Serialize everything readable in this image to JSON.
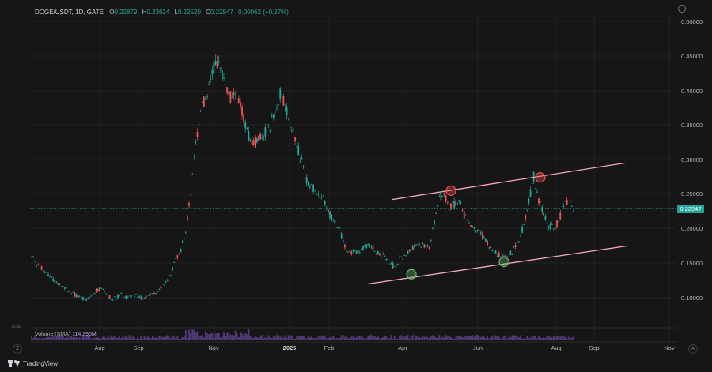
{
  "header": {
    "symbol": "DOGE/USDT, 1D, GATE",
    "open_label": "O",
    "open": "0.22879",
    "high_label": "H",
    "high": "0.23624",
    "low_label": "L",
    "low": "0.22520",
    "close_label": "C",
    "close": "0.22947",
    "change": "0.00062 (+0.27%)"
  },
  "volume": {
    "label": "Volume (SMA)",
    "value": "114.295M",
    "scale_label": "100.0M"
  },
  "last_price": "0.22947",
  "branding": {
    "name": "TradingView"
  },
  "buttons": {
    "goto_date": "Z",
    "auto_scale": "A"
  },
  "colors": {
    "up": "#26a69a",
    "down": "#ef5350",
    "channel": "#f4a9b8",
    "high_marker": "#ef5350",
    "low_marker": "#66bb6a",
    "price_line": "#26a69a",
    "volume": "#7e57c2"
  },
  "chart_data": {
    "type": "candlestick",
    "x_ticks": [
      "Aug",
      "Sep",
      "Nov",
      "2025",
      "Feb",
      "Apr",
      "Jun",
      "Aug",
      "Sep",
      "Nov"
    ],
    "y_ticks": [
      "0.50000",
      "0.45000",
      "0.40000",
      "0.35000",
      "0.30000",
      "0.25000",
      "0.20000",
      "0.15000",
      "0.10000"
    ],
    "ylim": [
      0.078,
      0.52
    ],
    "current_price": 0.22947,
    "closes": [
      0.16,
      0.15,
      0.143,
      0.135,
      0.128,
      0.122,
      0.117,
      0.112,
      0.108,
      0.103,
      0.1,
      0.097,
      0.103,
      0.11,
      0.113,
      0.106,
      0.099,
      0.1,
      0.106,
      0.1,
      0.102,
      0.103,
      0.1,
      0.101,
      0.104,
      0.108,
      0.115,
      0.123,
      0.135,
      0.155,
      0.168,
      0.195,
      0.255,
      0.32,
      0.37,
      0.39,
      0.42,
      0.44,
      0.432,
      0.405,
      0.391,
      0.397,
      0.38,
      0.35,
      0.325,
      0.325,
      0.333,
      0.34,
      0.35,
      0.37,
      0.395,
      0.38,
      0.35,
      0.33,
      0.305,
      0.275,
      0.26,
      0.258,
      0.25,
      0.238,
      0.22,
      0.21,
      0.197,
      0.175,
      0.165,
      0.165,
      0.168,
      0.175,
      0.175,
      0.17,
      0.163,
      0.158,
      0.15,
      0.145,
      0.155,
      0.16,
      0.168,
      0.175,
      0.176,
      0.175,
      0.172,
      0.21,
      0.245,
      0.25,
      0.232,
      0.235,
      0.24,
      0.22,
      0.205,
      0.2,
      0.197,
      0.187,
      0.175,
      0.168,
      0.162,
      0.158,
      0.162,
      0.17,
      0.185,
      0.205,
      0.24,
      0.275,
      0.24,
      0.222,
      0.205,
      0.2,
      0.21,
      0.235,
      0.24,
      0.229
    ],
    "annotations": {
      "channel_upper": [
        [
          "2025-04",
          0.242
        ],
        [
          "2025-09",
          0.295
        ]
      ],
      "channel_lower": [
        [
          "2025-03",
          0.12
        ],
        [
          "2025-09",
          0.175
        ]
      ],
      "swing_highs": [
        0.255,
        0.274
      ],
      "swing_lows": [
        0.134,
        0.152
      ]
    }
  }
}
